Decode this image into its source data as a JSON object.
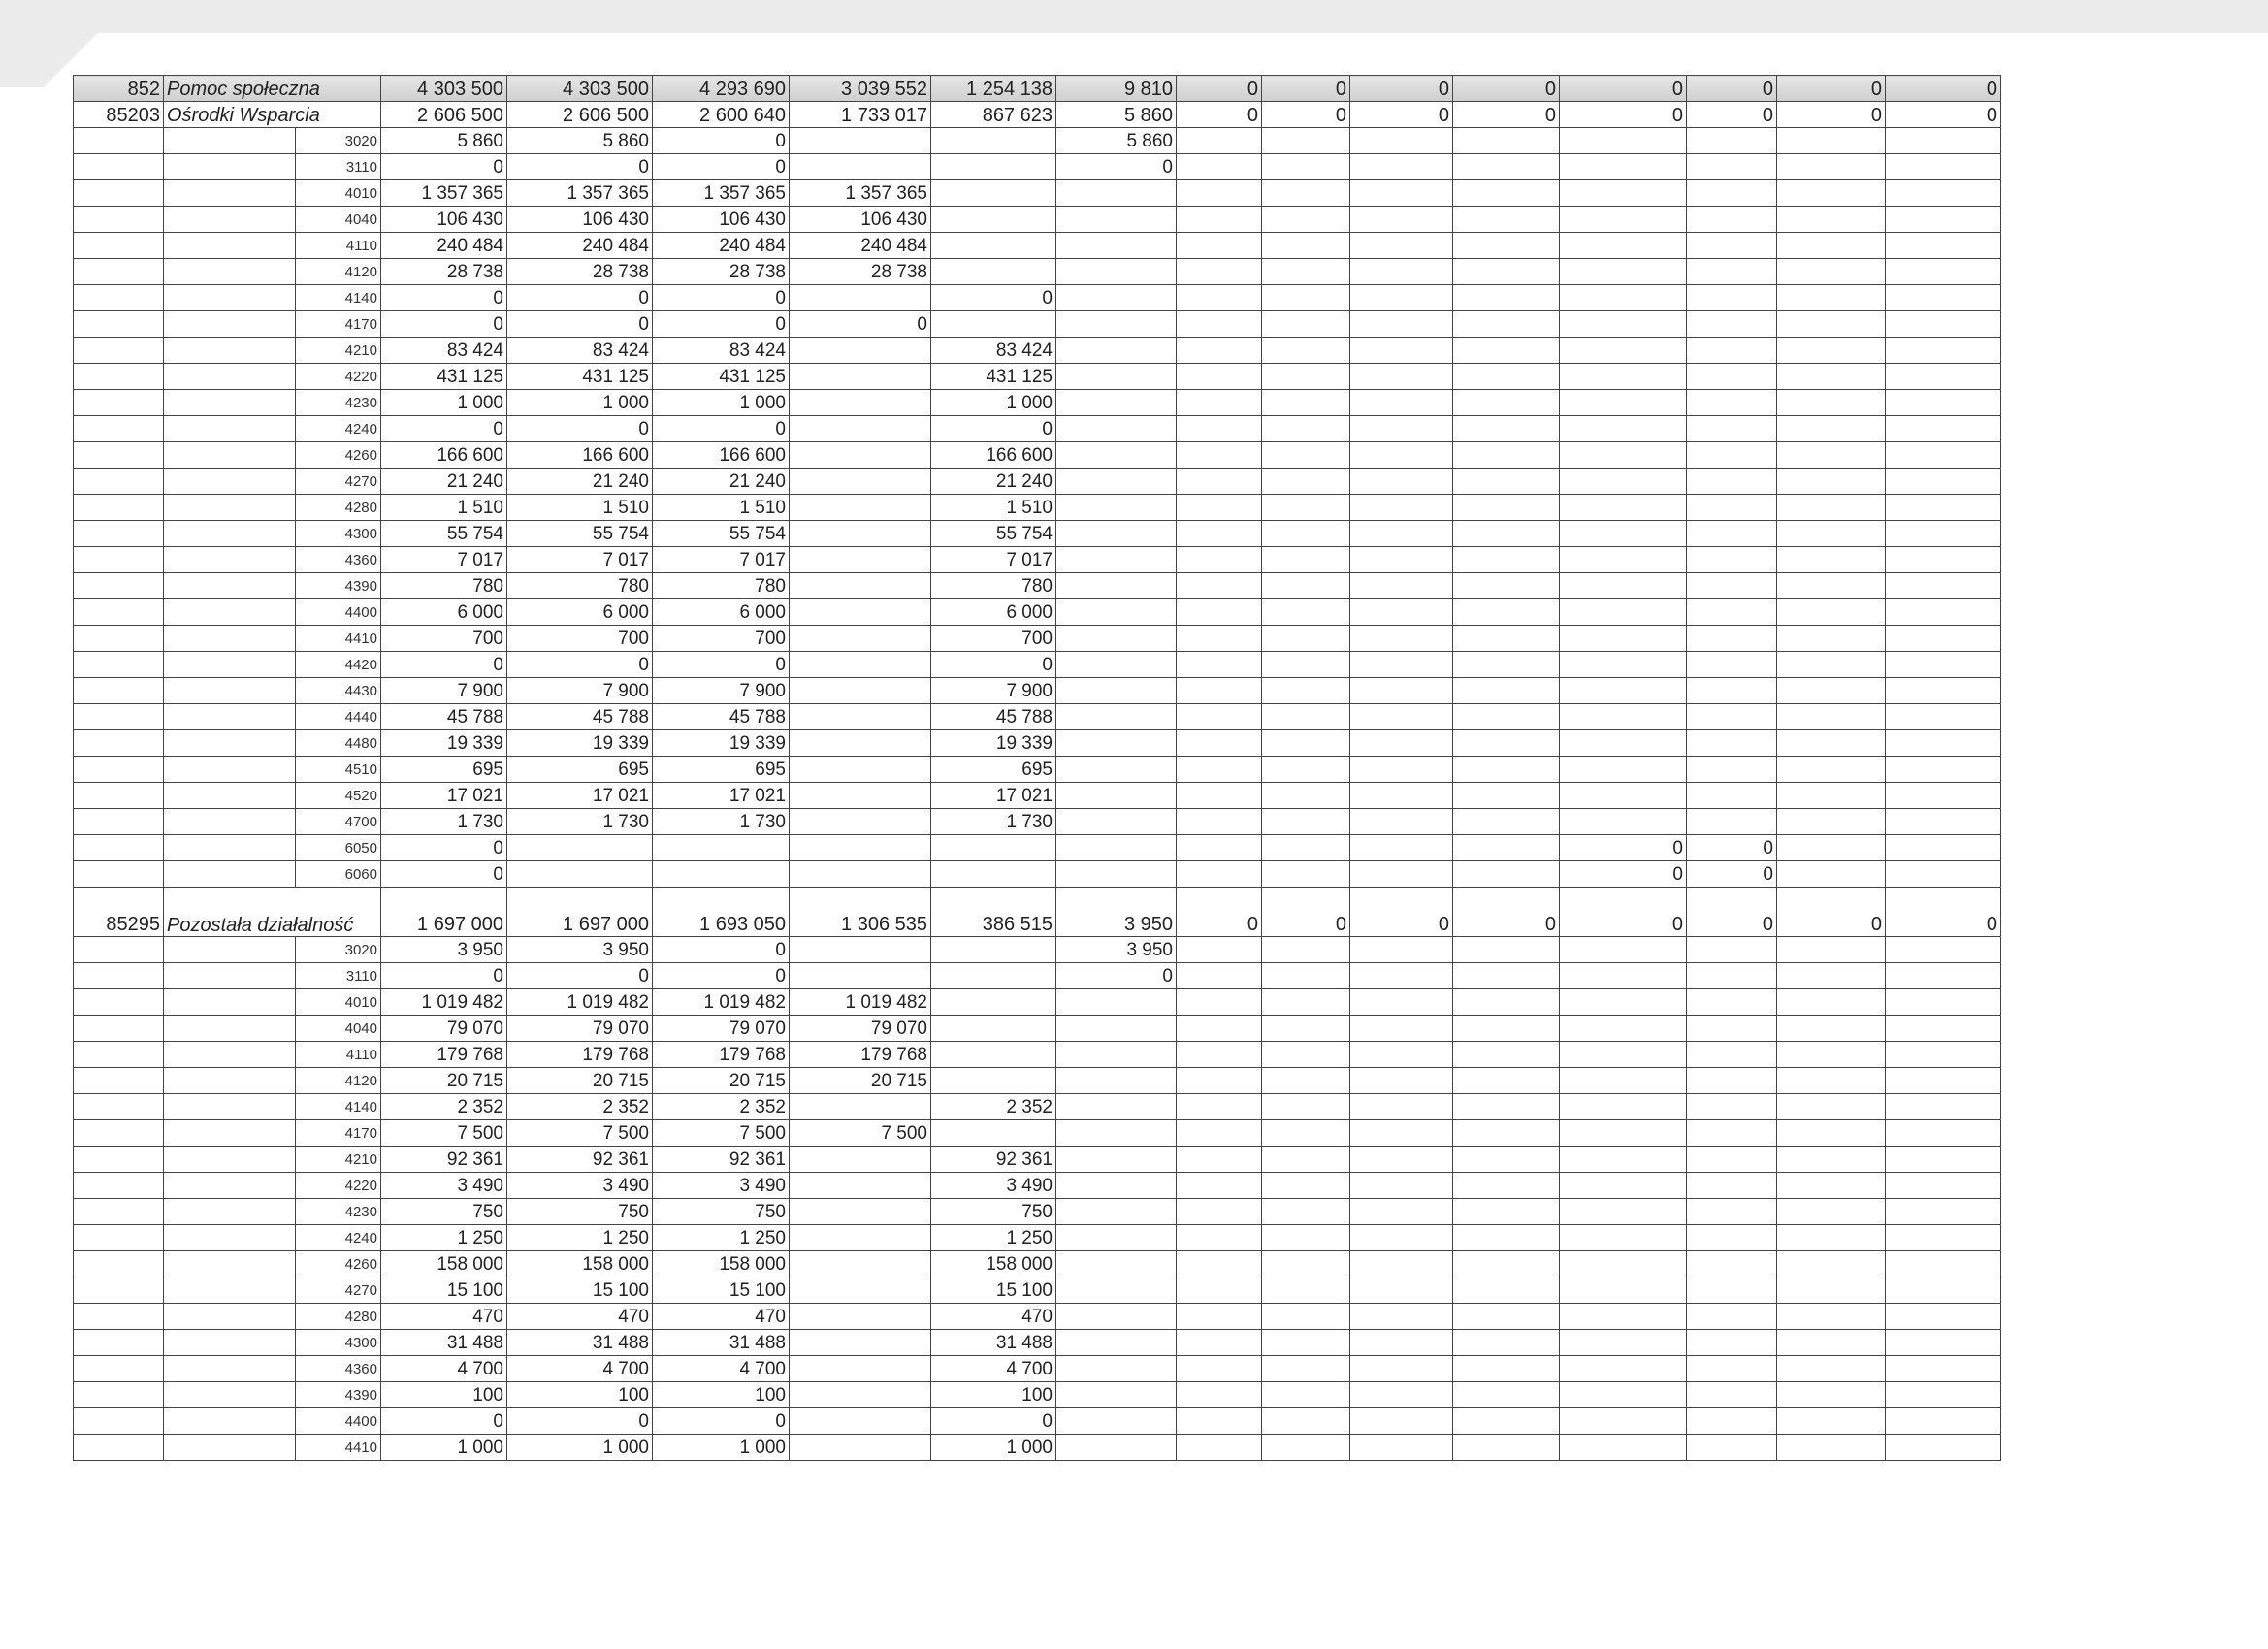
{
  "rows": [
    {
      "code": "852",
      "name": "Pomoc społeczna",
      "cells": [
        "4 303 500",
        "4 303 500",
        "4 293 690",
        "3 039 552",
        "1 254 138",
        "9 810",
        "0",
        "0",
        "0",
        "0",
        "0",
        "0",
        "0",
        "0"
      ]
    },
    {
      "code": "85203",
      "name": "Ośrodki Wsparcia",
      "cells": [
        "2 606 500",
        "2 606 500",
        "2 600 640",
        "1 733 017",
        "867 623",
        "5 860",
        "0",
        "0",
        "0",
        "0",
        "0",
        "0",
        "0",
        "0"
      ]
    },
    {
      "par": "3020",
      "cells": [
        "5 860",
        "5 860",
        "0",
        null,
        null,
        "5 860"
      ]
    },
    {
      "par": "3110",
      "cells": [
        "0",
        "0",
        "0",
        null,
        null,
        "0"
      ]
    },
    {
      "par": "4010",
      "cells": [
        "1 357 365",
        "1 357 365",
        "1 357 365",
        "1 357 365"
      ]
    },
    {
      "par": "4040",
      "cells": [
        "106 430",
        "106 430",
        "106 430",
        "106 430"
      ]
    },
    {
      "par": "4110",
      "cells": [
        "240 484",
        "240 484",
        "240 484",
        "240 484"
      ]
    },
    {
      "par": "4120",
      "cells": [
        "28 738",
        "28 738",
        "28 738",
        "28 738"
      ]
    },
    {
      "par": "4140",
      "cells": [
        "0",
        "0",
        "0",
        null,
        "0"
      ]
    },
    {
      "par": "4170",
      "cells": [
        "0",
        "0",
        "0",
        "0"
      ]
    },
    {
      "par": "4210",
      "cells": [
        "83 424",
        "83 424",
        "83 424",
        null,
        "83 424"
      ]
    },
    {
      "par": "4220",
      "cells": [
        "431 125",
        "431 125",
        "431 125",
        null,
        "431 125"
      ]
    },
    {
      "par": "4230",
      "cells": [
        "1 000",
        "1 000",
        "1 000",
        null,
        "1 000"
      ]
    },
    {
      "par": "4240",
      "cells": [
        "0",
        "0",
        "0",
        null,
        "0"
      ]
    },
    {
      "par": "4260",
      "cells": [
        "166 600",
        "166 600",
        "166 600",
        null,
        "166 600"
      ]
    },
    {
      "par": "4270",
      "cells": [
        "21 240",
        "21 240",
        "21 240",
        null,
        "21 240"
      ]
    },
    {
      "par": "4280",
      "cells": [
        "1 510",
        "1 510",
        "1 510",
        null,
        "1 510"
      ]
    },
    {
      "par": "4300",
      "cells": [
        "55 754",
        "55 754",
        "55 754",
        null,
        "55 754"
      ]
    },
    {
      "par": "4360",
      "cells": [
        "7 017",
        "7 017",
        "7 017",
        null,
        "7 017"
      ]
    },
    {
      "par": "4390",
      "cells": [
        "780",
        "780",
        "780",
        null,
        "780"
      ]
    },
    {
      "par": "4400",
      "cells": [
        "6 000",
        "6 000",
        "6 000",
        null,
        "6 000"
      ]
    },
    {
      "par": "4410",
      "cells": [
        "700",
        "700",
        "700",
        null,
        "700"
      ]
    },
    {
      "par": "4420",
      "cells": [
        "0",
        "0",
        "0",
        null,
        "0"
      ]
    },
    {
      "par": "4430",
      "cells": [
        "7 900",
        "7 900",
        "7 900",
        null,
        "7 900"
      ]
    },
    {
      "par": "4440",
      "cells": [
        "45 788",
        "45 788",
        "45 788",
        null,
        "45 788"
      ]
    },
    {
      "par": "4480",
      "cells": [
        "19 339",
        "19 339",
        "19 339",
        null,
        "19 339"
      ]
    },
    {
      "par": "4510",
      "cells": [
        "695",
        "695",
        "695",
        null,
        "695"
      ]
    },
    {
      "par": "4520",
      "cells": [
        "17 021",
        "17 021",
        "17 021",
        null,
        "17 021"
      ]
    },
    {
      "par": "4700",
      "cells": [
        "1 730",
        "1 730",
        "1 730",
        null,
        "1 730"
      ]
    },
    {
      "par": "6050",
      "cells": [
        "0",
        null,
        null,
        null,
        null,
        null,
        null,
        null,
        null,
        null,
        "0",
        "0"
      ]
    },
    {
      "par": "6060",
      "cells": [
        "0",
        null,
        null,
        null,
        null,
        null,
        null,
        null,
        null,
        null,
        "0",
        "0"
      ]
    },
    {
      "code": "85295",
      "name": "Pozostała działalność",
      "cells": [
        "1 697 000",
        "1 697 000",
        "1 693 050",
        "1 306 535",
        "386 515",
        "3 950",
        "0",
        "0",
        "0",
        "0",
        "0",
        "0",
        "0",
        "0"
      ]
    },
    {
      "par": "3020",
      "cells": [
        "3 950",
        "3 950",
        "0",
        null,
        null,
        "3 950"
      ]
    },
    {
      "par": "3110",
      "cells": [
        "0",
        "0",
        "0",
        null,
        null,
        "0"
      ]
    },
    {
      "par": "4010",
      "cells": [
        "1 019 482",
        "1 019 482",
        "1 019 482",
        "1 019 482"
      ]
    },
    {
      "par": "4040",
      "cells": [
        "79 070",
        "79 070",
        "79 070",
        "79 070"
      ]
    },
    {
      "par": "4110",
      "cells": [
        "179 768",
        "179 768",
        "179 768",
        "179 768"
      ]
    },
    {
      "par": "4120",
      "cells": [
        "20 715",
        "20 715",
        "20 715",
        "20 715"
      ]
    },
    {
      "par": "4140",
      "cells": [
        "2 352",
        "2 352",
        "2 352",
        null,
        "2 352"
      ]
    },
    {
      "par": "4170",
      "cells": [
        "7 500",
        "7 500",
        "7 500",
        "7 500"
      ]
    },
    {
      "par": "4210",
      "cells": [
        "92 361",
        "92 361",
        "92 361",
        null,
        "92 361"
      ]
    },
    {
      "par": "4220",
      "cells": [
        "3 490",
        "3 490",
        "3 490",
        null,
        "3 490"
      ]
    },
    {
      "par": "4230",
      "cells": [
        "750",
        "750",
        "750",
        null,
        "750"
      ]
    },
    {
      "par": "4240",
      "cells": [
        "1 250",
        "1 250",
        "1 250",
        null,
        "1 250"
      ]
    },
    {
      "par": "4260",
      "cells": [
        "158 000",
        "158 000",
        "158 000",
        null,
        "158 000"
      ]
    },
    {
      "par": "4270",
      "cells": [
        "15 100",
        "15 100",
        "15 100",
        null,
        "15 100"
      ]
    },
    {
      "par": "4280",
      "cells": [
        "470",
        "470",
        "470",
        null,
        "470"
      ]
    },
    {
      "par": "4300",
      "cells": [
        "31 488",
        "31 488",
        "31 488",
        null,
        "31 488"
      ]
    },
    {
      "par": "4360",
      "cells": [
        "4 700",
        "4 700",
        "4 700",
        null,
        "4 700"
      ]
    },
    {
      "par": "4390",
      "cells": [
        "100",
        "100",
        "100",
        null,
        "100"
      ]
    },
    {
      "par": "4400",
      "cells": [
        "0",
        "0",
        "0",
        null,
        "0"
      ]
    },
    {
      "par": "4410",
      "cells": [
        "1 000",
        "1 000",
        "1 000",
        null,
        "1 000"
      ]
    }
  ]
}
